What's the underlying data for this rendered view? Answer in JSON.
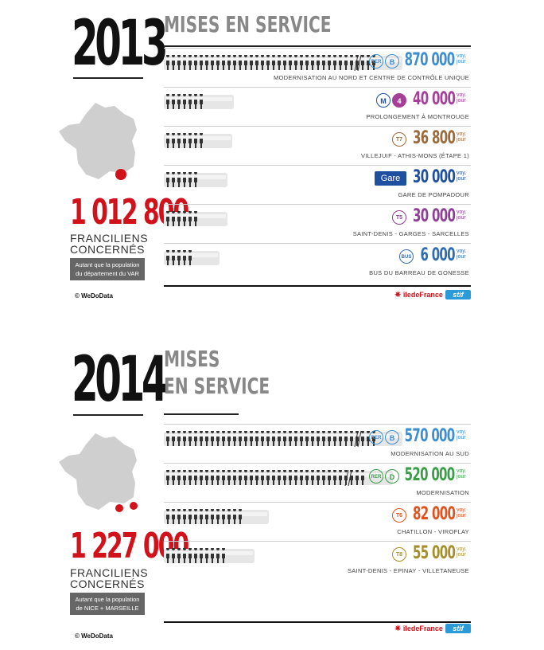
{
  "chart_data": [
    {
      "type": "bar",
      "year": "2013",
      "title": "MISES EN SERVICE",
      "total": "1 012 800",
      "people_label_1": "FRANCILIENS",
      "people_label_2": "CONCERNÉS",
      "note_line_1": "Autant que la population",
      "note_line_2": "du département du VAR",
      "categories": [
        "RER B",
        "M4",
        "T7",
        "Gare",
        "T5",
        "Bus"
      ],
      "values": [
        870000,
        40000,
        36800,
        30000,
        30000,
        6000
      ],
      "rows": [
        {
          "value": "870 000",
          "caption": "MODERNISATION AU NORD ET CENTRE DE CONTRÔLE UNIQUE",
          "badge1": "RER",
          "badge2": "B",
          "color": "#3d8fd1",
          "kind": "rer"
        },
        {
          "value": "40 000",
          "caption": "PROLONGEMENT À MONTROUGE",
          "badge1": "M",
          "badge2": "4",
          "color": "#a53f98",
          "kind": "metro"
        },
        {
          "value": "36 800",
          "caption": "VILLEJUIF - ATHIS-MONS (ÉTAPE 1)",
          "badge1": "T7",
          "color": "#9b6b3c",
          "kind": "single"
        },
        {
          "value": "30 000",
          "caption": "GARE DE POMPADOUR",
          "badge1": "Gare",
          "color": "#1f4f9f",
          "kind": "gare"
        },
        {
          "value": "30 000",
          "caption": "SAINT-DENIS - GARGES - SARCELLES",
          "badge1": "T5",
          "color": "#8e3f96",
          "kind": "single"
        },
        {
          "value": "6 000",
          "caption": "BUS DU BARREAU DE GONESSE",
          "badge1": "BUS",
          "color": "#2f6db3",
          "kind": "single"
        }
      ]
    },
    {
      "type": "bar",
      "year": "2014",
      "title_line_1": "MISES",
      "title_line_2": "EN SERVICE",
      "total": "1 227 000",
      "people_label_1": "FRANCILIENS",
      "people_label_2": "CONCERNÉS",
      "note_line_1": "Autant que la population",
      "note_line_2": "de NICE + MARSEILLE",
      "categories": [
        "RER B",
        "RER D",
        "T6",
        "T8"
      ],
      "values": [
        570000,
        520000,
        82000,
        55000
      ],
      "rows": [
        {
          "value": "570 000",
          "caption": "MODERNISATION AU SUD",
          "badge1": "RER",
          "badge2": "B",
          "color": "#3d8fd1",
          "kind": "rer"
        },
        {
          "value": "520 000",
          "caption": "MODERNISATION",
          "badge1": "RER",
          "badge2": "D",
          "color": "#3a9e48",
          "kind": "rer"
        },
        {
          "value": "82 000",
          "caption": "CHATILLON - VIROFLAY",
          "badge1": "T6",
          "color": "#e0531f",
          "kind": "single"
        },
        {
          "value": "55 000",
          "caption": "SAINT-DENIS - EPINAY - VILLETANEUSE",
          "badge1": "T8",
          "color": "#a58f2a",
          "kind": "single"
        }
      ]
    }
  ],
  "unit_line_1": "voy.",
  "unit_line_2": "jour",
  "copyright": "© WeDoData",
  "logo_region": "îledeFrance",
  "logo_stif": "stif",
  "colors": {
    "red": "#d1121a",
    "grey": "#888888",
    "people": "#333333"
  }
}
